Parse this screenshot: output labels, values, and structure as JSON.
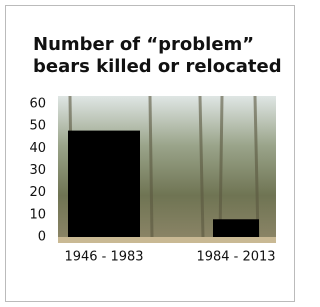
{
  "chart_data": {
    "type": "bar",
    "title": [
      "Number of “problem”",
      "bears killed or relocated"
    ],
    "categories": [
      "1946 - 1983",
      "1984 - 2013"
    ],
    "values": [
      48,
      8
    ],
    "color": "#000000",
    "ylim": [
      0,
      60
    ],
    "yticks": [
      0,
      10,
      20,
      30,
      40,
      50,
      60
    ]
  }
}
